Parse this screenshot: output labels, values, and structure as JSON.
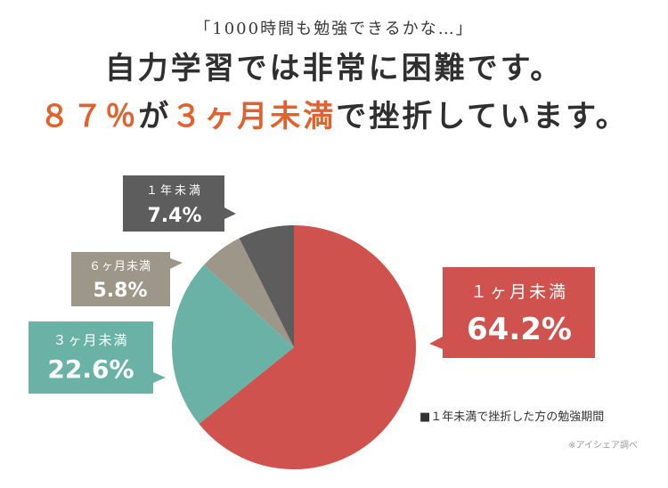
{
  "header": {
    "quote": "「1000時間も勉強できるかな…」",
    "headline_line1": "自力学習では非常に困難です。",
    "headline_line2": {
      "part1": "８７％",
      "part2": "が",
      "part3": "３ヶ月未満",
      "part4": "で挫折しています。"
    }
  },
  "chart_data": {
    "type": "pie",
    "title": "",
    "legend": "■１年未満で挫折した方の勉強期間",
    "start_angle_deg": 0,
    "direction": "clockwise",
    "slices": [
      {
        "label": "１ヶ月未満",
        "value": 64.2,
        "value_label": "64.2%",
        "color": "#d0524e"
      },
      {
        "label": "３ヶ月未満",
        "value": 22.6,
        "value_label": "22.6%",
        "color": "#6ab2a6"
      },
      {
        "label": "６ヶ月未満",
        "value": 5.8,
        "value_label": "5.8%",
        "color": "#9c9788"
      },
      {
        "label": "１年未満",
        "value": 7.4,
        "value_label": "7.4%",
        "color": "#5d5d5d"
      }
    ]
  },
  "footer": {
    "source": "※アイシェア調べ"
  }
}
